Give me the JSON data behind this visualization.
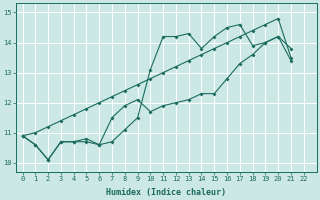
{
  "xlabel": "Humidex (Indice chaleur)",
  "bg_color": "#cce8e4",
  "grid_color": "#b0d8d4",
  "line_color": "#1a6b5e",
  "xlim": [
    -0.5,
    23.0
  ],
  "ylim": [
    9.7,
    15.3
  ],
  "ytick_values": [
    10,
    11,
    12,
    13,
    14,
    15
  ],
  "series1": [
    10.9,
    10.6,
    10.1,
    10.7,
    10.7,
    10.8,
    10.6,
    10.7,
    11.1,
    11.5,
    13.1,
    14.2,
    14.2,
    14.3,
    13.8,
    14.2,
    14.5,
    14.6,
    13.9,
    14.0,
    14.2,
    13.8
  ],
  "series2": [
    10.9,
    10.6,
    10.1,
    10.7,
    10.7,
    10.7,
    10.6,
    11.5,
    11.9,
    12.1,
    11.7,
    11.9,
    12.0,
    12.1,
    12.3,
    12.3,
    12.8,
    13.3,
    13.6,
    14.0,
    14.2,
    13.4
  ],
  "series3": [
    10.9,
    11.0,
    11.2,
    11.4,
    11.6,
    11.8,
    12.0,
    12.2,
    12.4,
    12.6,
    12.8,
    13.0,
    13.2,
    13.4,
    13.6,
    13.8,
    14.0,
    14.2,
    14.4,
    14.6,
    14.8,
    13.5
  ],
  "x_values": [
    0,
    1,
    2,
    3,
    4,
    5,
    6,
    7,
    8,
    9,
    10,
    11,
    12,
    13,
    14,
    15,
    16,
    17,
    18,
    19,
    20,
    21
  ],
  "xlabel_fontsize": 6.0,
  "tick_fontsize": 5.0,
  "linewidth": 0.8,
  "markersize": 2.0
}
